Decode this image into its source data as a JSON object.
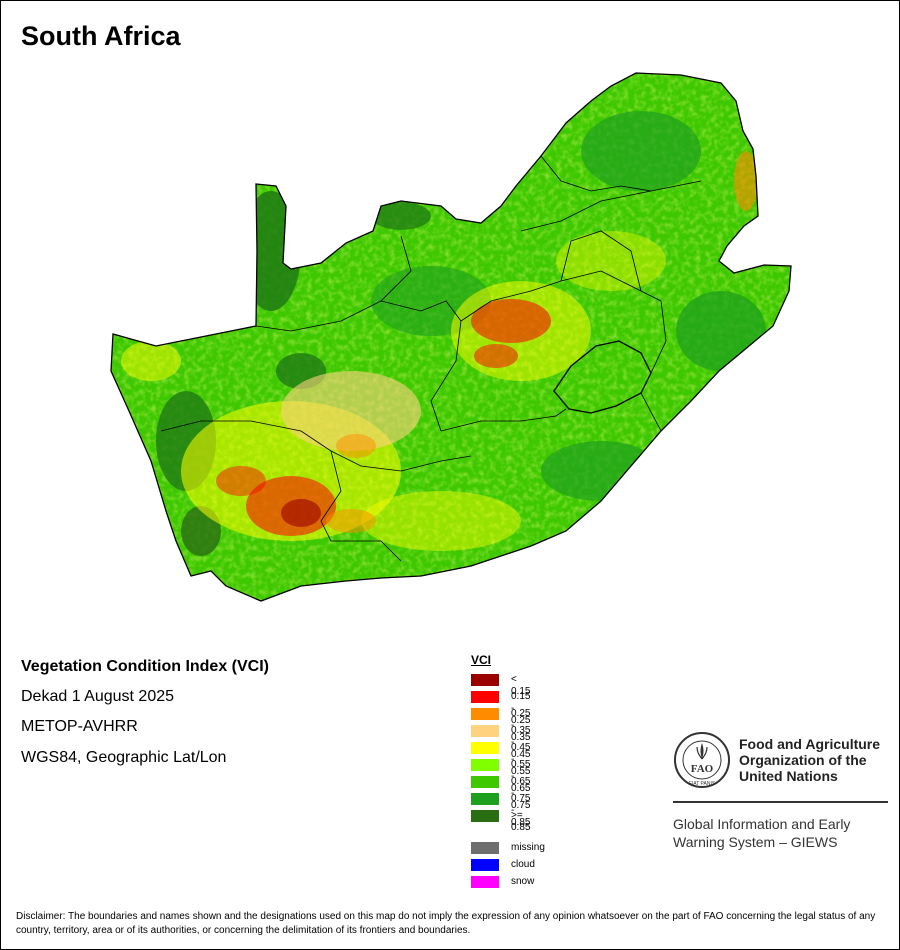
{
  "map_title": "South Africa",
  "info": {
    "index_title": "Vegetation Condition Index (VCI)",
    "dekad": "Dekad 1 August 2025",
    "sensor": "METOP-AVHRR",
    "projection": "WGS84, Geographic Lat/Lon"
  },
  "legend": {
    "title": "VCI",
    "classes": [
      {
        "label": "< 0.15",
        "color": "#9b0000"
      },
      {
        "label": "0.15 - 0.25",
        "color": "#ff0000"
      },
      {
        "label": "0.25 - 0.35",
        "color": "#ff8c00"
      },
      {
        "label": "0.35 - 0.45",
        "color": "#ffd27f"
      },
      {
        "label": "0.45 - 0.55",
        "color": "#ffff00"
      },
      {
        "label": "0.55 - 0.65",
        "color": "#7fff00"
      },
      {
        "label": "0.65 - 0.75",
        "color": "#3ec800"
      },
      {
        "label": "0.75 - 0.85",
        "color": "#1ea01e"
      },
      {
        "label": ">= 0.85",
        "color": "#2a6e14"
      }
    ],
    "special": [
      {
        "label": "missing",
        "color": "#6e6e6e"
      },
      {
        "label": "cloud",
        "color": "#0000ff"
      },
      {
        "label": "snow",
        "color": "#ff00ff"
      }
    ]
  },
  "org": {
    "logo_text": "FAO",
    "logo_motto": "FIAT PANIS",
    "name_line1": "Food and Agriculture",
    "name_line2": "Organization of the",
    "name_line3": "United Nations",
    "system_line1": "Global Information and Early",
    "system_line2": "Warning System – GIEWS"
  },
  "disclaimer": "Disclaimer: The boundaries and names shown and the designations used on this map do not imply the expression of any opinion whatsoever on the part of FAO concerning the legal status of any country, territory, area or of its authorities, or concerning the delimitation of its frontiers and boundaries."
}
